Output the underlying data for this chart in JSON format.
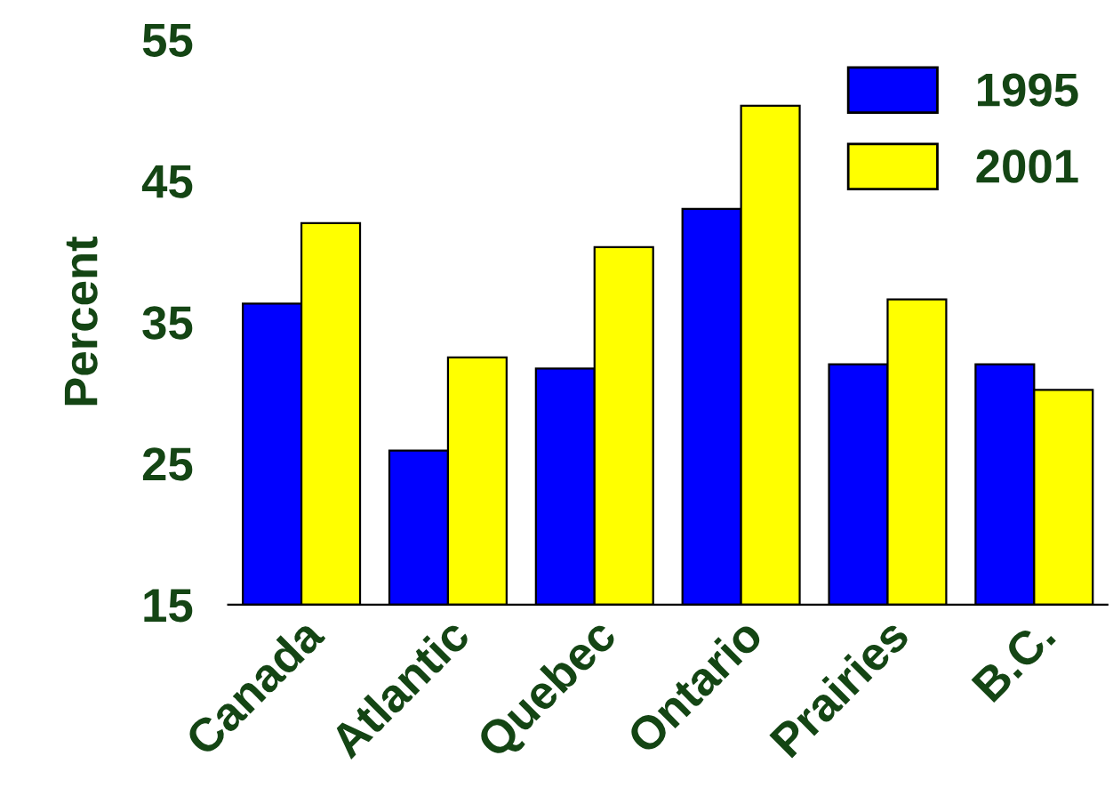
{
  "chart_data": {
    "type": "bar",
    "ylabel": "Percent",
    "categories": [
      "Canada",
      "Atlantic",
      "Quebec",
      "Ontario",
      "Prairies",
      "B.C."
    ],
    "series": [
      {
        "name": "1995",
        "color": "#0000ff",
        "values": [
          36.3,
          25.9,
          31.7,
          43.0,
          32.0,
          32.0
        ]
      },
      {
        "name": "2001",
        "color": "#ffff00",
        "values": [
          42.0,
          32.5,
          40.3,
          50.3,
          36.6,
          30.2
        ]
      }
    ],
    "ylim": [
      15,
      55
    ],
    "yticks": [
      15,
      25,
      35,
      45,
      55
    ],
    "grid": false,
    "legend": "top right"
  }
}
